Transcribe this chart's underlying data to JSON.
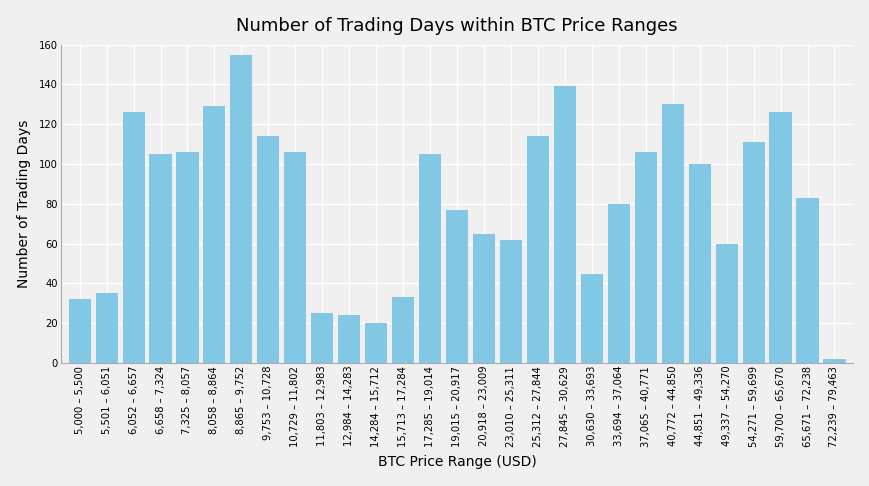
{
  "title": "Number of Trading Days within BTC Price Ranges",
  "xlabel": "BTC Price Range (USD)",
  "ylabel": "Number of Trading Days",
  "categories": [
    "5,000 – 5,500",
    "5,501 – 6,051",
    "6,052 – 6,657",
    "6,658 – 7,324",
    "7,325 – 8,057",
    "8,058 – 8,864",
    "8,865 – 9,752",
    "9,753 – 10,728",
    "10,729 – 11,802",
    "11,803 – 12,983",
    "12,984 – 14,283",
    "14,284 – 15,712",
    "15,713 – 17,284",
    "17,285 – 19,014",
    "19,015 – 20,917",
    "20,918 – 23,009",
    "23,010 – 25,311",
    "25,312 – 27,844",
    "27,845 – 30,629",
    "30,630 – 33,693",
    "33,694 – 37,064",
    "37,065 – 40,771",
    "40,772 – 44,850",
    "44,851 – 49,336",
    "49,337 – 54,270",
    "54,271 – 59,699",
    "59,700 – 65,670",
    "65,671 – 72,238",
    "72,239 – 79,463"
  ],
  "values": [
    32,
    35,
    126,
    105,
    106,
    129,
    155,
    114,
    106,
    25,
    24,
    20,
    33,
    105,
    77,
    65,
    62,
    114,
    139,
    45,
    80,
    106,
    130,
    100,
    60,
    111,
    126,
    83,
    2
  ],
  "bar_color": "#82C8E5",
  "background_color": "#f0f0f0",
  "plot_bg_color": "#f0f0f0",
  "grid_color": "#ffffff",
  "ylim": [
    0,
    160
  ],
  "yticks": [
    0,
    20,
    40,
    60,
    80,
    100,
    120,
    140,
    160
  ],
  "title_fontsize": 13,
  "axis_label_fontsize": 10,
  "tick_fontsize": 7.2
}
